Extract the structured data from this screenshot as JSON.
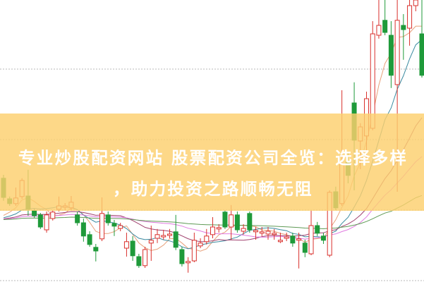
{
  "title": {
    "line1": "专业炒股配资网站 股票配资公司全览：选择多样",
    "line2": "，助力投资之路顺畅无阻"
  },
  "colors": {
    "up": "#d9302c",
    "down": "#1f9a3a",
    "banner": "#fcd06e",
    "grid": "#b8b8b8",
    "ma": [
      "#e8a07a",
      "#3a8aa0",
      "#a0406e",
      "#e07ae0",
      "#5f9a55"
    ]
  },
  "chart_data": {
    "type": "candlestick",
    "title": "",
    "xlabel": "",
    "ylabel": "",
    "ylim": [
      0,
      100
    ],
    "grid": "horizontal dotted",
    "gridlines": [
      75.5,
      50.5,
      25.5,
      0.5
    ],
    "moving_averages": [
      5,
      10,
      20,
      30,
      60
    ],
    "ohlc": [
      [
        36.8,
        30,
        38,
        28.8
      ],
      [
        29.5,
        27.8,
        30.3,
        27
      ],
      [
        27.8,
        29.8,
        33.5,
        27
      ],
      [
        30.3,
        36,
        36.8,
        29.5
      ],
      [
        30.5,
        25.8,
        39.8,
        23.5
      ],
      [
        25.3,
        23.5,
        26,
        22.8
      ],
      [
        23.8,
        19.5,
        24.5,
        18.8
      ],
      [
        18.5,
        23.8,
        25,
        17.5
      ],
      [
        22.5,
        24.8,
        25.5,
        21.8
      ],
      [
        25.8,
        27,
        30.3,
        25
      ],
      [
        26.5,
        27,
        28,
        25.5
      ],
      [
        26.3,
        28.3,
        30.5,
        25.5
      ],
      [
        23.8,
        21,
        25,
        20
      ],
      [
        21,
        16.3,
        22.5,
        14.3
      ],
      [
        16.8,
        13.3,
        18,
        12.5
      ],
      [
        12.3,
        11,
        13.5,
        7.3
      ],
      [
        15.3,
        24.3,
        30,
        14.5
      ],
      [
        23.8,
        21,
        25,
        20
      ],
      [
        20.8,
        19.8,
        22,
        16.3
      ],
      [
        19,
        20,
        21,
        18
      ],
      [
        12,
        14.3,
        17.5,
        9
      ],
      [
        14.5,
        9.3,
        16.3,
        7.5
      ],
      [
        9,
        5.8,
        10,
        5
      ],
      [
        5.8,
        11.5,
        12.5,
        5
      ],
      [
        13.8,
        14.8,
        20,
        7.5
      ],
      [
        15.5,
        16.8,
        18.8,
        13.8
      ],
      [
        16,
        16.5,
        18.5,
        15
      ],
      [
        16.5,
        17,
        18.8,
        15.5
      ],
      [
        17.8,
        12.3,
        23.8,
        11.3
      ],
      [
        11.5,
        6.5,
        12.5,
        5.5
      ],
      [
        6.8,
        7.3,
        8.8,
        3.3
      ],
      [
        7.5,
        14.8,
        17.5,
        7
      ],
      [
        12.8,
        13.8,
        15.5,
        12
      ],
      [
        14.3,
        16.3,
        18.8,
        13.3
      ],
      [
        16.8,
        19.5,
        23,
        15.5
      ],
      [
        18.8,
        19.3,
        20.5,
        17.5
      ],
      [
        24.8,
        19.5,
        25.5,
        18.8
      ],
      [
        19.5,
        23.8,
        27.3,
        15
      ],
      [
        23.8,
        18.5,
        25,
        17.5
      ],
      [
        18,
        19,
        20.5,
        16.8
      ],
      [
        24.3,
        18.5,
        25,
        17.5
      ],
      [
        17.8,
        18.3,
        19.5,
        15
      ],
      [
        17.3,
        17.8,
        19.5,
        16.3
      ],
      [
        17,
        18,
        19.5,
        15
      ],
      [
        16.8,
        17.3,
        18.8,
        15
      ],
      [
        14.3,
        14.8,
        17.5,
        13.8
      ],
      [
        15.5,
        16,
        17.5,
        14.5
      ],
      [
        16.3,
        13.8,
        17.5,
        12.5
      ],
      [
        14.8,
        15.3,
        17.5,
        4.8
      ],
      [
        13.8,
        10.5,
        15,
        8.8
      ],
      [
        10,
        20,
        25.3,
        9.5
      ],
      [
        20,
        17.3,
        21.3,
        16.3
      ],
      [
        16.3,
        14.8,
        17.5,
        13.5
      ],
      [
        9.5,
        31.8,
        32.5,
        8.8
      ],
      [
        32,
        26.3,
        33.8,
        25.5
      ],
      [
        27.8,
        42,
        68,
        27
      ],
      [
        42.5,
        37.8,
        46.3,
        35
      ],
      [
        63.5,
        50.3,
        70.8,
        32.5
      ],
      [
        50,
        55,
        56.3,
        40
      ],
      [
        51.8,
        65,
        67.5,
        43.8
      ],
      [
        54.5,
        88,
        92.5,
        53.8
      ],
      [
        87.5,
        91,
        100,
        86.3
      ],
      [
        92.8,
        88.5,
        100,
        87.5
      ],
      [
        87.5,
        73.3,
        92.5,
        68.8
      ],
      [
        70,
        92.8,
        100,
        32
      ],
      [
        91,
        89.5,
        95,
        78.8
      ],
      [
        90,
        98,
        100,
        83.8
      ],
      [
        98,
        100,
        100,
        96
      ],
      [
        88,
        73.3,
        100,
        72.5
      ]
    ]
  }
}
